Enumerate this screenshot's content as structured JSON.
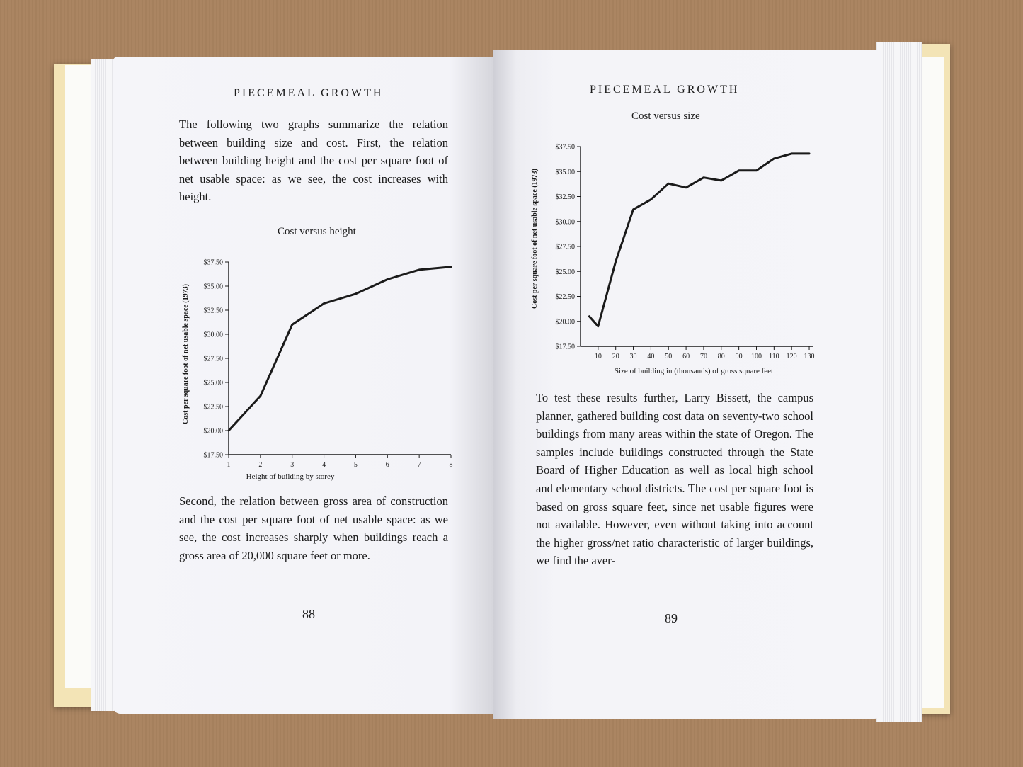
{
  "running_head": "PIECEMEAL GROWTH",
  "left_page": {
    "paragraph_1": "The following two graphs summarize the relation between building size and cost. First, the relation between building height and the cost per square foot of net usable space: as we see, the cost increases with height.",
    "paragraph_2": "Second, the relation between gross area of construction and the cost per square foot of net usable space: as we see, the cost increases sharply when buildings reach a gross area of 20,000 square feet or more.",
    "page_number": "88"
  },
  "right_page": {
    "paragraph_1": "To test these results further, Larry Bissett, the campus planner, gathered building cost data on seventy-two school buildings from many areas within the state of Oregon. The samples include buildings constructed through the State Board of Higher Education as well as local high school and elementary school districts. The cost per square foot is based on gross square feet, since net usable figures were not available. However, even without taking into account the higher gross/net ratio characteristic of larger buildings, we find the aver-",
    "page_number": "89"
  },
  "chart_data": [
    {
      "type": "line",
      "title": "Cost versus height",
      "xlabel": "Height of building by storey",
      "ylabel": "Cost per square foot of net usable space (1973)",
      "x": [
        1,
        2,
        3,
        4,
        5,
        6,
        7,
        8
      ],
      "y": [
        20.0,
        23.6,
        31.0,
        33.2,
        34.2,
        35.7,
        36.7,
        37.0
      ],
      "xticks": [
        "1",
        "2",
        "3",
        "4",
        "5",
        "6",
        "7",
        "8"
      ],
      "ytick_labels": [
        "$17.50",
        "$20.00",
        "$22.50",
        "$25.00",
        "$27.50",
        "$30.00",
        "$32.50",
        "$35.00",
        "$37.50"
      ],
      "xlim": [
        1,
        8
      ],
      "ylim": [
        17.5,
        37.5
      ],
      "grid": false
    },
    {
      "type": "line",
      "title": "Cost versus size",
      "xlabel": "Size of building in (thousands) of gross square feet",
      "ylabel": "Cost per square foot of net usable space (1973)",
      "x": [
        5,
        10,
        20,
        30,
        40,
        50,
        60,
        70,
        80,
        90,
        100,
        110,
        120,
        130
      ],
      "y": [
        20.5,
        19.5,
        26.0,
        31.2,
        32.2,
        33.8,
        33.4,
        34.4,
        34.1,
        35.1,
        35.1,
        36.3,
        36.8,
        36.8
      ],
      "xticks": [
        "10",
        "20",
        "30",
        "40",
        "50",
        "60",
        "70",
        "80",
        "90",
        "100",
        "110",
        "120",
        "130"
      ],
      "ytick_labels": [
        "$17.50",
        "$20.00",
        "$22.50",
        "$25.00",
        "$27.50",
        "$30.00",
        "$32.50",
        "$35.00",
        "$37.50"
      ],
      "xlim": [
        0,
        132
      ],
      "ylim": [
        17.5,
        37.5
      ],
      "grid": false
    }
  ]
}
